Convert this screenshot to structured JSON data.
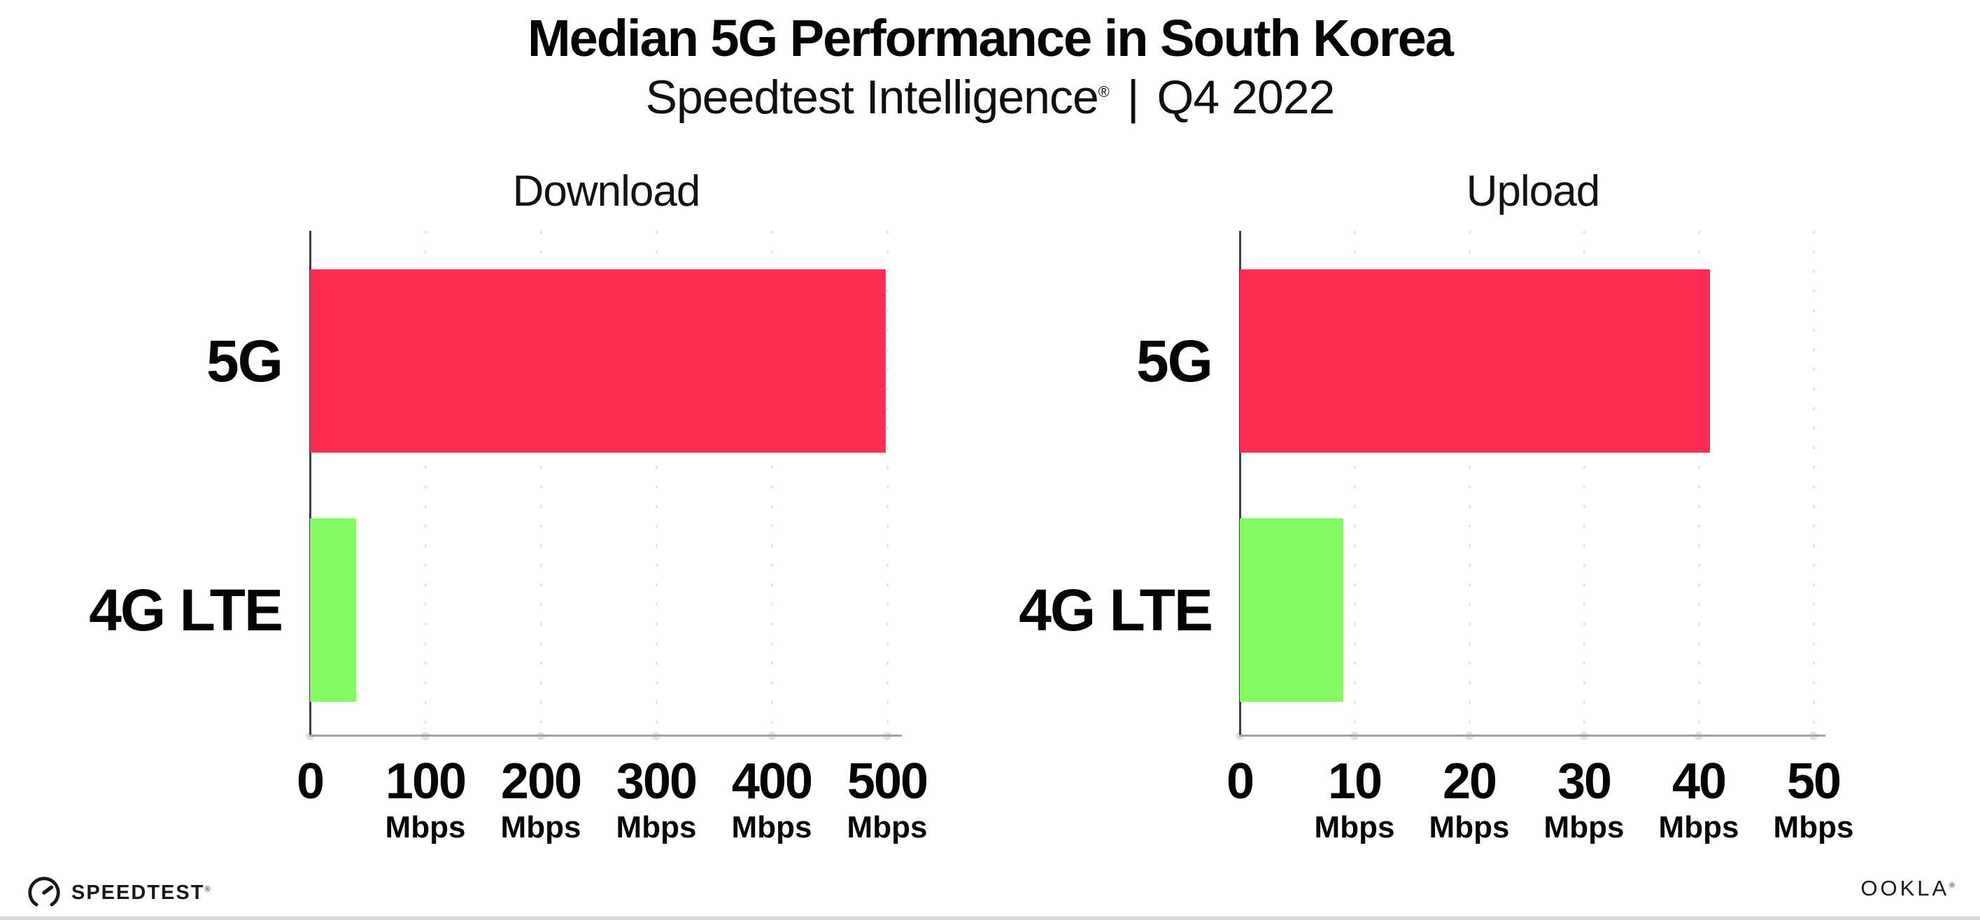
{
  "header": {
    "title": "Median 5G Performance in South Korea",
    "subtitle_brand": "Speedtest Intelligence",
    "subtitle_registered": "®",
    "subtitle_divider": "|",
    "subtitle_period": "Q4 2022"
  },
  "footer": {
    "speedtest_logo_text": "SPEEDTEST",
    "speedtest_registered": "®",
    "speedtest_gauge_icon": "speedtest-gauge-icon",
    "ookla_logo_text": "OOKLA",
    "ookla_registered": "®"
  },
  "colors": {
    "bar_5g": "#FE2D55",
    "bar_4g_lte": "#85FB63",
    "gridline": "#e3e3ee",
    "x_axis": "#a2a2ab",
    "y_axis": "#3d3d46",
    "text": "#050507",
    "background": "#ffffff"
  },
  "chart_data": [
    {
      "type": "bar",
      "orientation": "horizontal",
      "title": "Download",
      "categories": [
        "5G",
        "4G LTE"
      ],
      "values": [
        499,
        40
      ],
      "value_unit": "Mbps",
      "xlim": [
        0,
        500
      ],
      "xticks": [
        0,
        100,
        200,
        300,
        400,
        500
      ],
      "tick_unit_label": "Mbps",
      "bar_colors": [
        "#FE2D55",
        "#85FB63"
      ],
      "grid": "dotted-vertical",
      "legend": "none"
    },
    {
      "type": "bar",
      "orientation": "horizontal",
      "title": "Upload",
      "categories": [
        "5G",
        "4G LTE"
      ],
      "values": [
        41,
        9
      ],
      "value_unit": "Mbps",
      "xlim": [
        0,
        50
      ],
      "xticks": [
        0,
        10,
        20,
        30,
        40,
        50
      ],
      "tick_unit_label": "Mbps",
      "bar_colors": [
        "#FE2D55",
        "#85FB63"
      ],
      "grid": "dotted-vertical",
      "legend": "none"
    }
  ]
}
